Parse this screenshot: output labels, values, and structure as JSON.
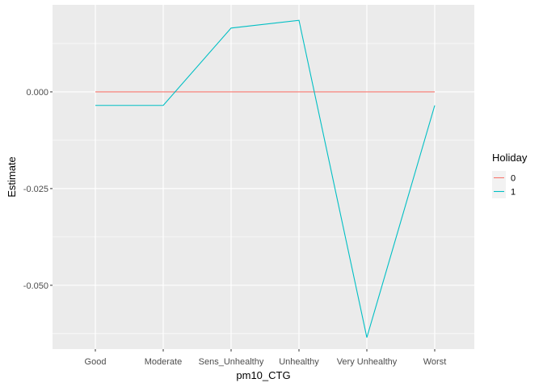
{
  "chart_data": {
    "type": "line",
    "title": "",
    "xlabel": "pm10_CTG",
    "ylabel": "Estimate",
    "categories": [
      "Good",
      "Moderate",
      "Sens_Unhealthy",
      "Unhealthy",
      "Very Unhealthy",
      "Worst"
    ],
    "series": [
      {
        "name": "0",
        "color": "#F8766D",
        "values": [
          0,
          0,
          0,
          0,
          0,
          0
        ]
      },
      {
        "name": "1",
        "color": "#00BFC4",
        "values": [
          -0.0035,
          -0.0035,
          0.0165,
          0.0185,
          -0.0635,
          -0.0035
        ]
      }
    ],
    "ylim": [
      -0.0665,
      0.0225
    ],
    "yticks": [
      {
        "value": 0.0,
        "label": "0.000"
      },
      {
        "value": -0.025,
        "label": "-0.025"
      },
      {
        "value": -0.05,
        "label": "-0.050"
      }
    ],
    "legend": {
      "title": "Holiday",
      "placement": "right"
    },
    "grid": true,
    "panel_color": "#EBEBEB",
    "grid_color": "#FFFFFF"
  }
}
